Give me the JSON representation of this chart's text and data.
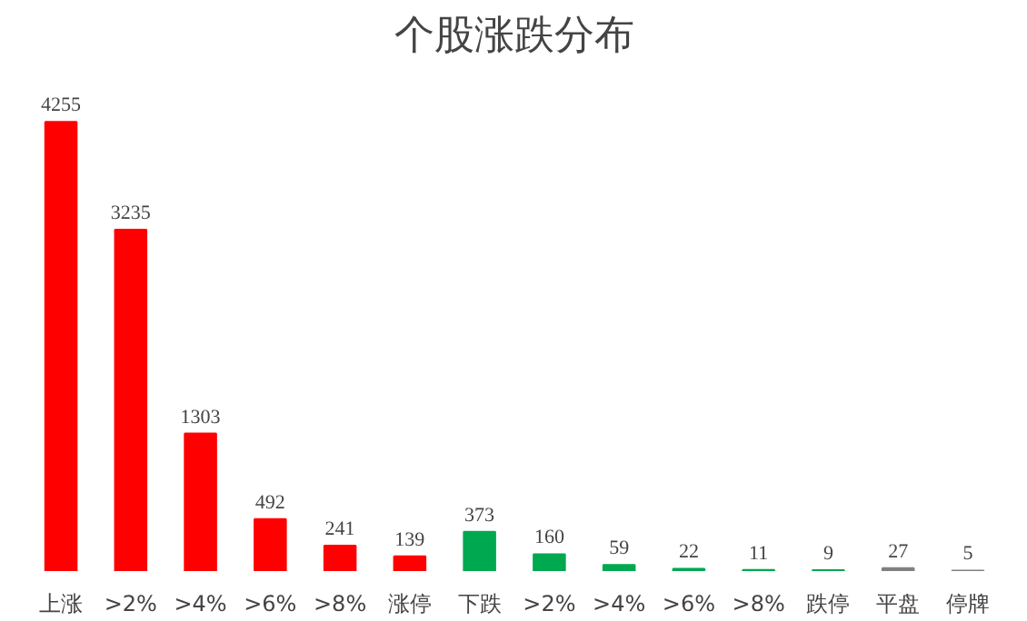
{
  "chart_data": {
    "type": "bar",
    "title": "个股涨跌分布",
    "categories": [
      "上涨",
      ">2%",
      ">4%",
      ">6%",
      ">8%",
      "涨停",
      "下跌",
      ">2%",
      ">4%",
      ">6%",
      ">8%",
      "跌停",
      "平盘",
      "停牌"
    ],
    "values": [
      4255,
      3235,
      1303,
      492,
      241,
      139,
      373,
      160,
      59,
      22,
      11,
      9,
      27,
      5
    ],
    "colors": [
      "#ff0000",
      "#ff0000",
      "#ff0000",
      "#ff0000",
      "#ff0000",
      "#ff0000",
      "#00a850",
      "#00a850",
      "#00a850",
      "#00a850",
      "#00a850",
      "#00a850",
      "#808080",
      "#808080"
    ],
    "data_labels": true
  }
}
